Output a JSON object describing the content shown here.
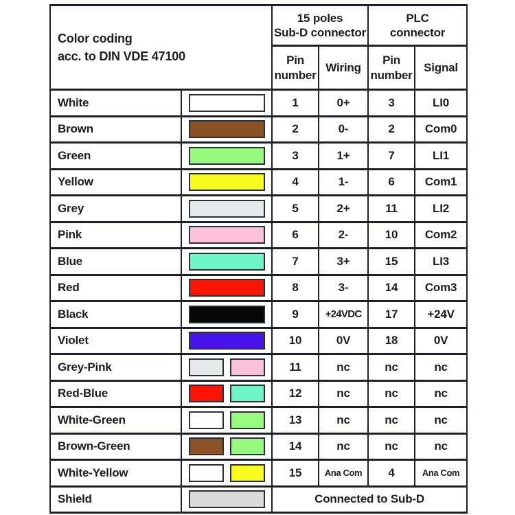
{
  "ui": {
    "background": "#ffffff",
    "border_color": "#1c2129",
    "text_color": "#1a1d21"
  },
  "header": {
    "title_line1": "Color coding",
    "title_line2": "acc. to DIN VDE 47100",
    "subd_line1": "15 poles",
    "subd_line2": "Sub-D connector",
    "plc_line1": "PLC",
    "plc_line2": "connector",
    "pin_line1": "Pin",
    "pin_line2": "number",
    "wiring": "Wiring",
    "signal": "Signal"
  },
  "rows": [
    {
      "name": "White",
      "colors": [
        "#ffffff"
      ],
      "pin_subd": "1",
      "wiring": "0+",
      "pin_plc": "3",
      "signal": "LI0"
    },
    {
      "name": "Brown",
      "colors": [
        "#8a5226"
      ],
      "pin_subd": "2",
      "wiring": "0-",
      "pin_plc": "2",
      "signal": "Com0"
    },
    {
      "name": "Green",
      "colors": [
        "#97fb7f"
      ],
      "pin_subd": "3",
      "wiring": "1+",
      "pin_plc": "7",
      "signal": "LI1"
    },
    {
      "name": "Yellow",
      "colors": [
        "#f8fc1e"
      ],
      "pin_subd": "4",
      "wiring": "1-",
      "pin_plc": "6",
      "signal": "Com1"
    },
    {
      "name": "Grey",
      "colors": [
        "#e4e9ea"
      ],
      "pin_subd": "5",
      "wiring": "2+",
      "pin_plc": "11",
      "signal": "LI2"
    },
    {
      "name": "Pink",
      "colors": [
        "#fec1dc"
      ],
      "pin_subd": "6",
      "wiring": "2-",
      "pin_plc": "10",
      "signal": "Com2"
    },
    {
      "name": "Blue",
      "colors": [
        "#70f5c8"
      ],
      "pin_subd": "7",
      "wiring": "3+",
      "pin_plc": "15",
      "signal": "LI3"
    },
    {
      "name": "Red",
      "colors": [
        "#fb1505"
      ],
      "pin_subd": "8",
      "wiring": "3-",
      "pin_plc": "14",
      "signal": "Com3"
    },
    {
      "name": "Black",
      "colors": [
        "#070707"
      ],
      "pin_subd": "9",
      "wiring": "+24VDC",
      "pin_plc": "17",
      "signal": "+24V"
    },
    {
      "name": "Violet",
      "colors": [
        "#4615ea"
      ],
      "pin_subd": "10",
      "wiring": "0V",
      "pin_plc": "18",
      "signal": "0V"
    },
    {
      "name": "Grey-Pink",
      "colors": [
        "#e4e9ea",
        "#fec1dc"
      ],
      "pin_subd": "11",
      "wiring": "nc",
      "pin_plc": "nc",
      "signal": "nc"
    },
    {
      "name": "Red-Blue",
      "colors": [
        "#fb1505",
        "#70f5c8"
      ],
      "pin_subd": "12",
      "wiring": "nc",
      "pin_plc": "nc",
      "signal": "nc"
    },
    {
      "name": "White-Green",
      "colors": [
        "#ffffff",
        "#97fb7f"
      ],
      "pin_subd": "13",
      "wiring": "nc",
      "pin_plc": "nc",
      "signal": "nc"
    },
    {
      "name": "Brown-Green",
      "colors": [
        "#8a5226",
        "#97fb7f"
      ],
      "pin_subd": "14",
      "wiring": "nc",
      "pin_plc": "nc",
      "signal": "nc"
    },
    {
      "name": "White-Yellow",
      "colors": [
        "#ffffff",
        "#f8fc1e"
      ],
      "pin_subd": "15",
      "wiring": "Ana Com",
      "pin_plc": "4",
      "signal": "Ana Com"
    },
    {
      "name": "Shield",
      "colors": [
        "#dcdcdc"
      ],
      "note": "Connected to Sub-D"
    }
  ]
}
